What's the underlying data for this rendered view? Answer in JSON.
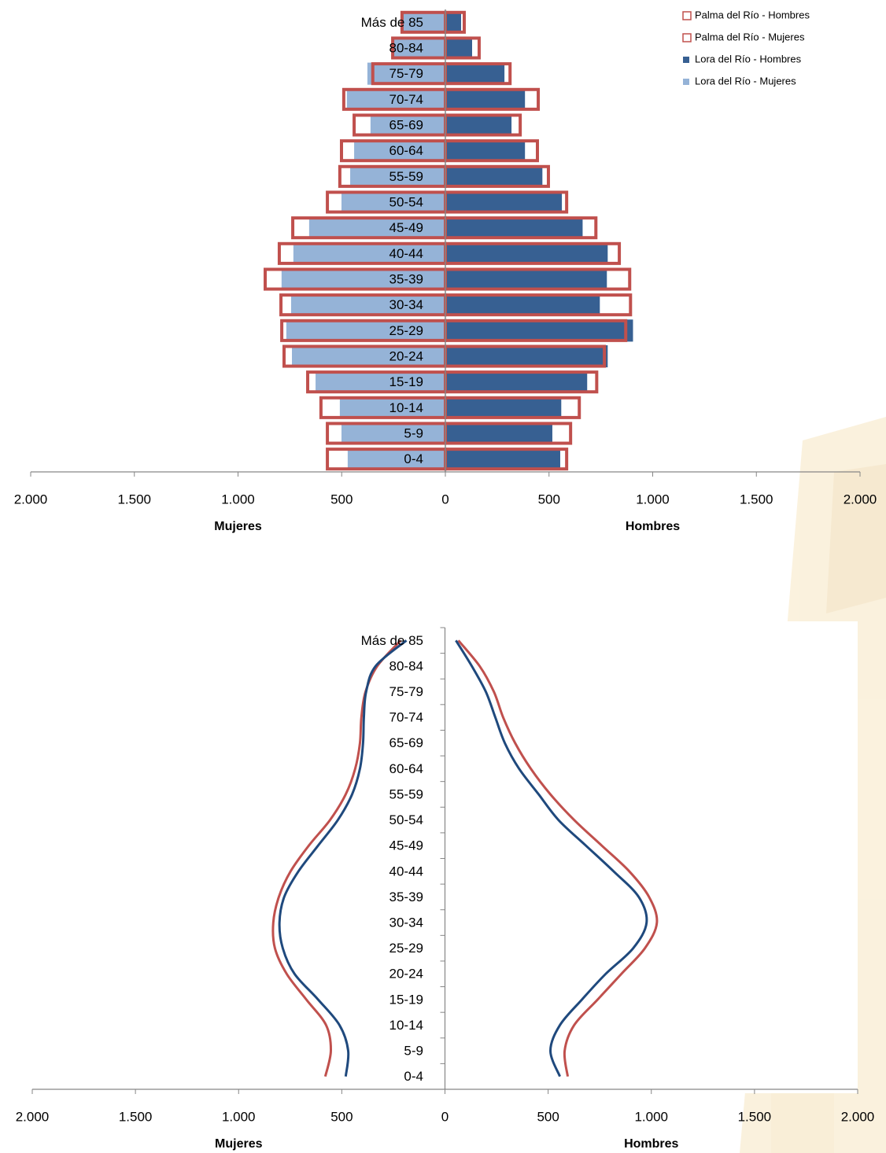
{
  "chart_data": [
    {
      "type": "bar",
      "categories": [
        "0-4",
        "5-9",
        "10-14",
        "15-19",
        "20-24",
        "25-29",
        "30-34",
        "35-39",
        "40-44",
        "45-49",
        "50-54",
        "55-59",
        "60-64",
        "65-69",
        "70-74",
        "75-79",
        "80-84",
        "Más de 85"
      ],
      "xlabels": [
        "Mujeres",
        "Hombres"
      ],
      "xlim": [
        -2000,
        2000
      ],
      "xticks": [
        {
          "value": -2000,
          "label": "2.000"
        },
        {
          "value": -1500,
          "label": "1.500"
        },
        {
          "value": -1000,
          "label": "1.000"
        },
        {
          "value": -500,
          "label": "500"
        },
        0,
        500,
        {
          "value": 1000,
          "label": "1.000"
        },
        {
          "value": 1500,
          "label": "1.500"
        },
        {
          "value": 2000,
          "label": "2.000"
        }
      ],
      "legend": "upper right",
      "series": [
        {
          "name": "Lora del Río - Mujeres",
          "color": "#95b3d7",
          "style": "fill",
          "values": [
            -471,
            -501,
            -509,
            -626,
            -740,
            -767,
            -744,
            -790,
            -733,
            -657,
            -501,
            -459,
            -440,
            -361,
            -475,
            -376,
            -254,
            -205
          ]
        },
        {
          "name": "Lora del Río - Hombres",
          "color": "#376092",
          "style": "fill",
          "values": [
            554,
            516,
            559,
            684,
            783,
            905,
            745,
            779,
            783,
            662,
            562,
            468,
            384,
            319,
            384,
            285,
            129,
            76
          ]
        },
        {
          "name": "Palma del Río - Mujeres",
          "color": "#c0504d",
          "style": "outline",
          "values": [
            -569,
            -569,
            -600,
            -664,
            -778,
            -789,
            -793,
            -869,
            -801,
            -736,
            -569,
            -509,
            -501,
            -440,
            -490,
            -350,
            -254,
            -209
          ]
        },
        {
          "name": "Palma del Río - Hombres",
          "color": "#c0504d",
          "style": "outline",
          "values": [
            585,
            604,
            646,
            730,
            767,
            870,
            893,
            889,
            839,
            726,
            585,
            497,
            444,
            361,
            448,
            312,
            163,
            91
          ]
        }
      ]
    },
    {
      "type": "line",
      "categories": [
        "0-4",
        "5-9",
        "10-14",
        "15-19",
        "20-24",
        "25-29",
        "30-34",
        "35-39",
        "40-44",
        "45-49",
        "50-54",
        "55-59",
        "60-64",
        "65-69",
        "70-74",
        "75-79",
        "80-84",
        "Más de 85"
      ],
      "xlabels": [
        "Mujeres",
        "Hombres"
      ],
      "xlim": [
        -2000,
        2000
      ],
      "xticks": [
        {
          "value": -2000,
          "label": "2.000"
        },
        {
          "value": -1500,
          "label": "1.500"
        },
        {
          "value": -1000,
          "label": "1.000"
        },
        {
          "value": -500,
          "label": "500"
        },
        0,
        500,
        {
          "value": 1000,
          "label": "1.000"
        },
        {
          "value": 1500,
          "label": "1.500"
        },
        {
          "value": 2000,
          "label": "2.000"
        }
      ],
      "series": [
        {
          "color": "#c0504d",
          "values": [
            -580,
            -553,
            -576,
            -672,
            -767,
            -824,
            -832,
            -805,
            -748,
            -660,
            -557,
            -481,
            -435,
            -412,
            -405,
            -385,
            -328,
            -214
          ]
        },
        {
          "color": "#c0504d",
          "values": [
            595,
            580,
            626,
            740,
            855,
            969,
            1027,
            989,
            893,
            760,
            626,
            511,
            416,
            340,
            282,
            237,
            168,
            65
          ]
        },
        {
          "color": "#1f497d",
          "values": [
            -481,
            -469,
            -511,
            -615,
            -729,
            -786,
            -802,
            -779,
            -710,
            -615,
            -519,
            -450,
            -412,
            -397,
            -393,
            -382,
            -336,
            -187
          ]
        },
        {
          "color": "#1f497d",
          "values": [
            557,
            511,
            557,
            664,
            779,
            912,
            977,
            939,
            817,
            683,
            550,
            454,
            359,
            290,
            244,
            198,
            130,
            53
          ]
        }
      ]
    }
  ]
}
